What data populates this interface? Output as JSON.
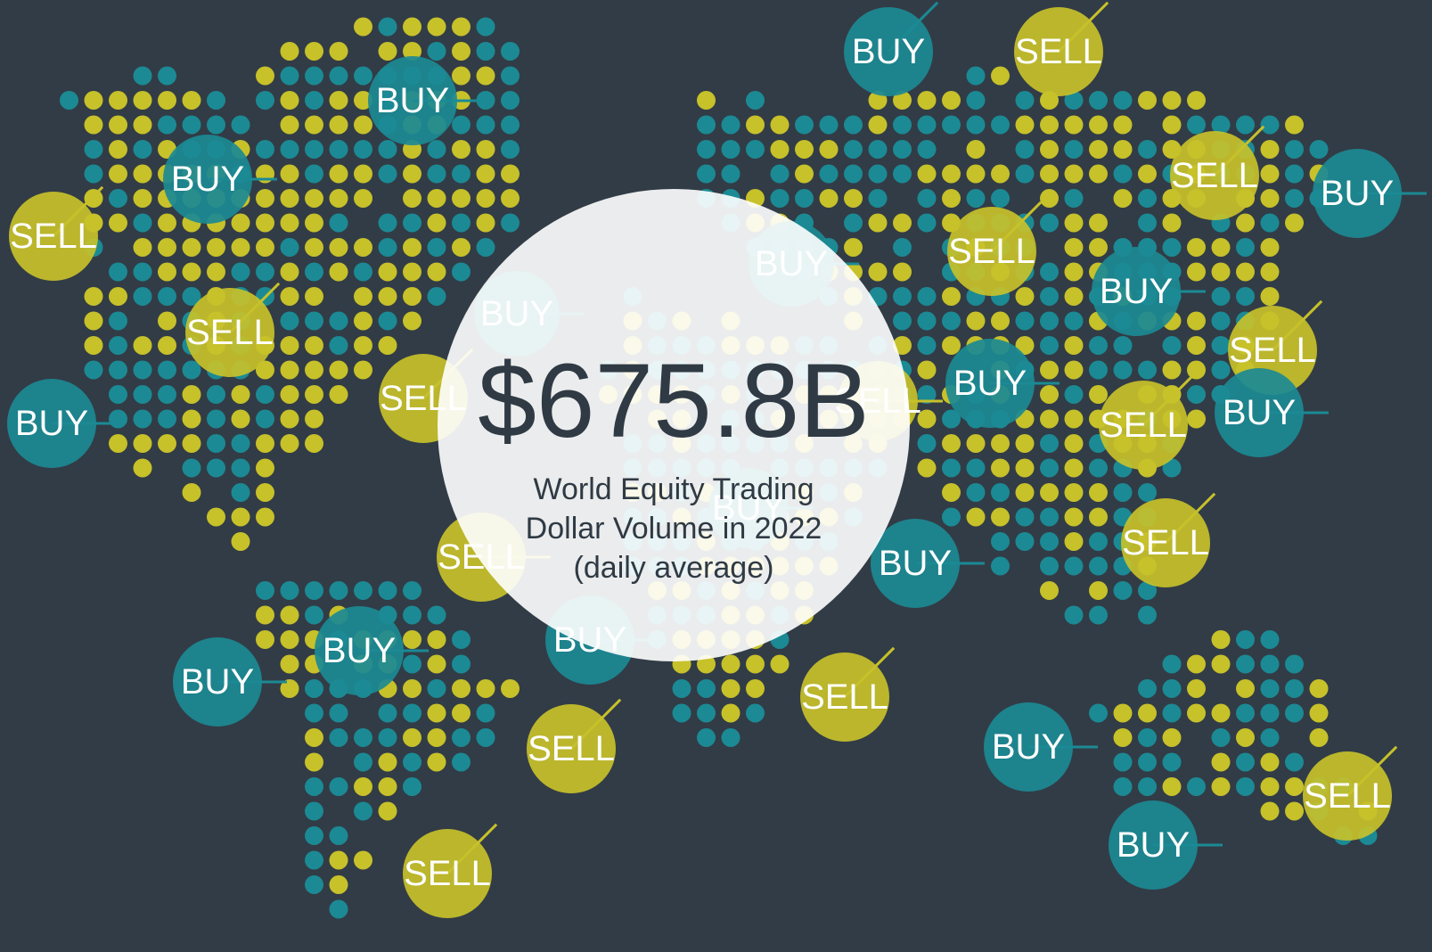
{
  "headline": {
    "value": "$675.8B",
    "lines": [
      "World Equity Trading",
      "Dollar Volume in 2022",
      "(daily average)"
    ]
  },
  "bubbles": [
    {
      "label": "BUY",
      "color": "#1b8a94"
    },
    {
      "label": "BUY",
      "color": "#1b8a94"
    },
    {
      "label": "SELL",
      "color": "#c7c12a"
    },
    {
      "label": "SELL",
      "color": "#c7c12a"
    },
    {
      "label": "BUY",
      "color": "#1b8a94"
    },
    {
      "label": "SELL",
      "color": "#c7c12a"
    },
    {
      "label": "BUY",
      "color": "#1b8a94"
    },
    {
      "label": "BUY",
      "color": "#1b8a94"
    },
    {
      "label": "SELL",
      "color": "#c7c12a"
    },
    {
      "label": "BUY",
      "color": "#1b8a94"
    },
    {
      "label": "BUY",
      "color": "#1b8a94"
    },
    {
      "label": "BUY",
      "color": "#1b8a94"
    },
    {
      "label": "SELL",
      "color": "#c7c12a"
    },
    {
      "label": "SELL",
      "color": "#c7c12a"
    },
    {
      "label": "SELL",
      "color": "#c7c12a"
    },
    {
      "label": "BUY",
      "color": "#1b8a94"
    },
    {
      "label": "BUY",
      "color": "#1b8a94"
    },
    {
      "label": "SELL",
      "color": "#c7c12a"
    },
    {
      "label": "SELL",
      "color": "#c7c12a"
    },
    {
      "label": "BUY",
      "color": "#1b8a94"
    },
    {
      "label": "SELL",
      "color": "#c7c12a"
    },
    {
      "label": "BUY",
      "color": "#1b8a94"
    },
    {
      "label": "BUY",
      "color": "#1b8a94"
    },
    {
      "label": "SELL",
      "color": "#c7c12a"
    },
    {
      "label": "BUY",
      "color": "#1b8a94"
    },
    {
      "label": "SELL",
      "color": "#c7c12a"
    },
    {
      "label": "SELL",
      "color": "#c7c12a"
    },
    {
      "label": "BUY",
      "color": "#1b8a94"
    },
    {
      "label": "SELL",
      "color": "#c7c12a"
    },
    {
      "label": "BUY",
      "color": "#1b8a94"
    },
    {
      "label": "SELL",
      "color": "#c7c12a"
    },
    {
      "label": "BUY",
      "color": "#1b8a94"
    }
  ]
}
